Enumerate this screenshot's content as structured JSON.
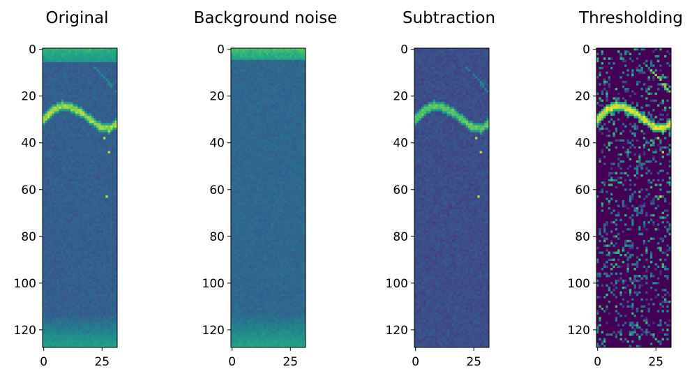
{
  "chart_data": [
    {
      "type": "heatmap",
      "title": "Original",
      "colormap": "viridis",
      "xlim": [
        -0.5,
        31.5
      ],
      "ylim": [
        127.5,
        -0.5
      ],
      "xticks": [
        0,
        25
      ],
      "yticks": [
        0,
        20,
        40,
        60,
        80,
        100,
        120
      ],
      "grid": false,
      "features": {
        "top_band": {
          "rows": [
            0,
            5
          ],
          "level": 0.78
        },
        "bottom_band": {
          "rows": [
            113,
            127
          ],
          "level": 0.72
        },
        "background_level": 0.38,
        "curve": {
          "points": [
            [
              0,
              30
            ],
            [
              4,
              26
            ],
            [
              8,
              24
            ],
            [
              12,
              25
            ],
            [
              16,
              27
            ],
            [
              20,
              30
            ],
            [
              24,
              33
            ],
            [
              28,
              34
            ],
            [
              31,
              32
            ]
          ],
          "level": 0.96,
          "width": 2
        },
        "upper_right_streak": {
          "points": [
            [
              22,
              8
            ],
            [
              26,
              12
            ],
            [
              31,
              18
            ]
          ],
          "level": 0.6
        },
        "isolated_points": [
          [
            26,
            38
          ],
          [
            28,
            44
          ],
          [
            27,
            63
          ]
        ],
        "contrast": 0.09
      }
    },
    {
      "type": "heatmap",
      "title": "Background noise",
      "colormap": "viridis",
      "xlim": [
        -0.5,
        31.5
      ],
      "ylim": [
        127.5,
        -0.5
      ],
      "xticks": [
        0,
        25
      ],
      "yticks": [
        0,
        20,
        40,
        60,
        80,
        100,
        120
      ],
      "grid": false,
      "features": {
        "top_band": {
          "rows": [
            0,
            4
          ],
          "level": 0.82
        },
        "bottom_band": {
          "rows": [
            113,
            127
          ],
          "level": 0.74
        },
        "background_level": 0.42,
        "contrast": 0.08
      }
    },
    {
      "type": "heatmap",
      "title": "Subtraction",
      "colormap": "viridis",
      "xlim": [
        -0.5,
        31.5
      ],
      "ylim": [
        127.5,
        -0.5
      ],
      "xticks": [
        0,
        25
      ],
      "yticks": [
        0,
        20,
        40,
        60,
        80,
        100,
        120
      ],
      "grid": false,
      "features": {
        "background_level": 0.3,
        "curve": {
          "points": [
            [
              0,
              30
            ],
            [
              4,
              26
            ],
            [
              8,
              24
            ],
            [
              12,
              25
            ],
            [
              16,
              27
            ],
            [
              20,
              30
            ],
            [
              24,
              33
            ],
            [
              28,
              34
            ],
            [
              31,
              32
            ]
          ],
          "level": 0.9,
          "width": 2
        },
        "upper_right_streak": {
          "points": [
            [
              22,
              8
            ],
            [
              26,
              12
            ],
            [
              31,
              18
            ]
          ],
          "level": 0.55
        },
        "isolated_points": [
          [
            26,
            38
          ],
          [
            28,
            44
          ],
          [
            27,
            63
          ]
        ],
        "contrast": 0.11
      }
    },
    {
      "type": "heatmap",
      "title": "Thresholding",
      "colormap": "viridis",
      "xlim": [
        -0.5,
        31.5
      ],
      "ylim": [
        127.5,
        -0.5
      ],
      "xticks": [
        0,
        25
      ],
      "yticks": [
        0,
        20,
        40,
        60,
        80,
        100,
        120
      ],
      "grid": false,
      "features": {
        "background_level": 0.0,
        "curve": {
          "points": [
            [
              0,
              30
            ],
            [
              4,
              26
            ],
            [
              8,
              24
            ],
            [
              12,
              25
            ],
            [
              16,
              27
            ],
            [
              20,
              30
            ],
            [
              24,
              33
            ],
            [
              28,
              34
            ],
            [
              31,
              32
            ]
          ],
          "level": 1.0,
          "width": 2
        },
        "upper_right_streak": {
          "points": [
            [
              22,
              8
            ],
            [
              26,
              12
            ],
            [
              31,
              18
            ]
          ],
          "level": 0.9
        },
        "isolated_points": [
          [
            26,
            38
          ],
          [
            28,
            44
          ],
          [
            27,
            63
          ]
        ],
        "threshold": true
      }
    }
  ]
}
